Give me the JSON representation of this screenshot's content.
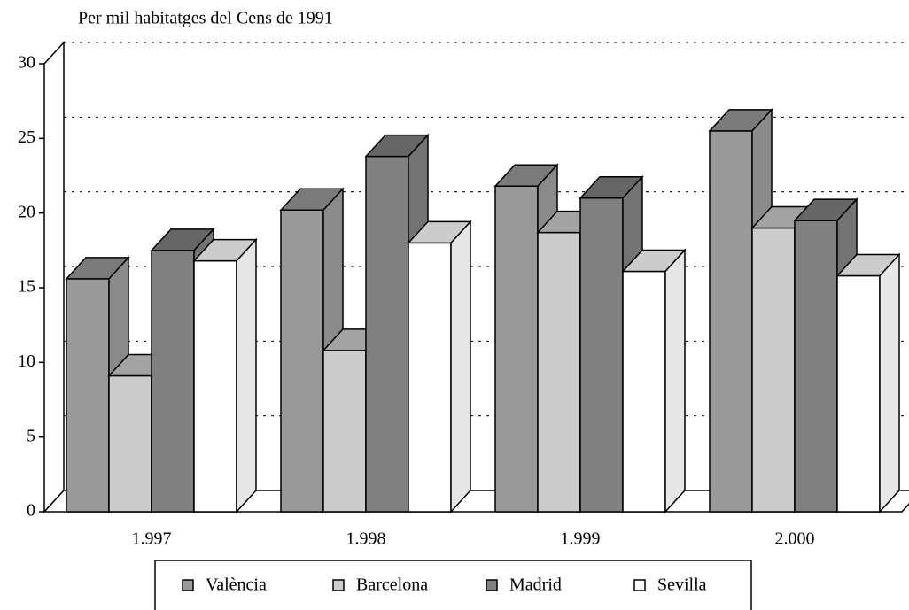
{
  "chart_data": {
    "type": "bar3d",
    "title": "Per mil habitatges del Cens de 1991",
    "categories": [
      "1.997",
      "1.998",
      "1.999",
      "2.000"
    ],
    "series": [
      {
        "name": "València",
        "color": "#999999",
        "values": [
          15.6,
          20.2,
          21.8,
          25.5
        ]
      },
      {
        "name": "Barcelona",
        "color": "#cccccc",
        "values": [
          9.1,
          10.8,
          18.7,
          19.0
        ]
      },
      {
        "name": "Madrid",
        "color": "#808080",
        "values": [
          17.5,
          23.8,
          21.0,
          19.5
        ]
      },
      {
        "name": "Sevilla",
        "color": "#ffffff",
        "values": [
          16.8,
          18.0,
          16.1,
          15.8
        ]
      }
    ],
    "ylim": [
      0,
      30
    ],
    "yticks": [
      0,
      5,
      10,
      15,
      20,
      25,
      30
    ],
    "grid": true,
    "legend": "bottom"
  }
}
